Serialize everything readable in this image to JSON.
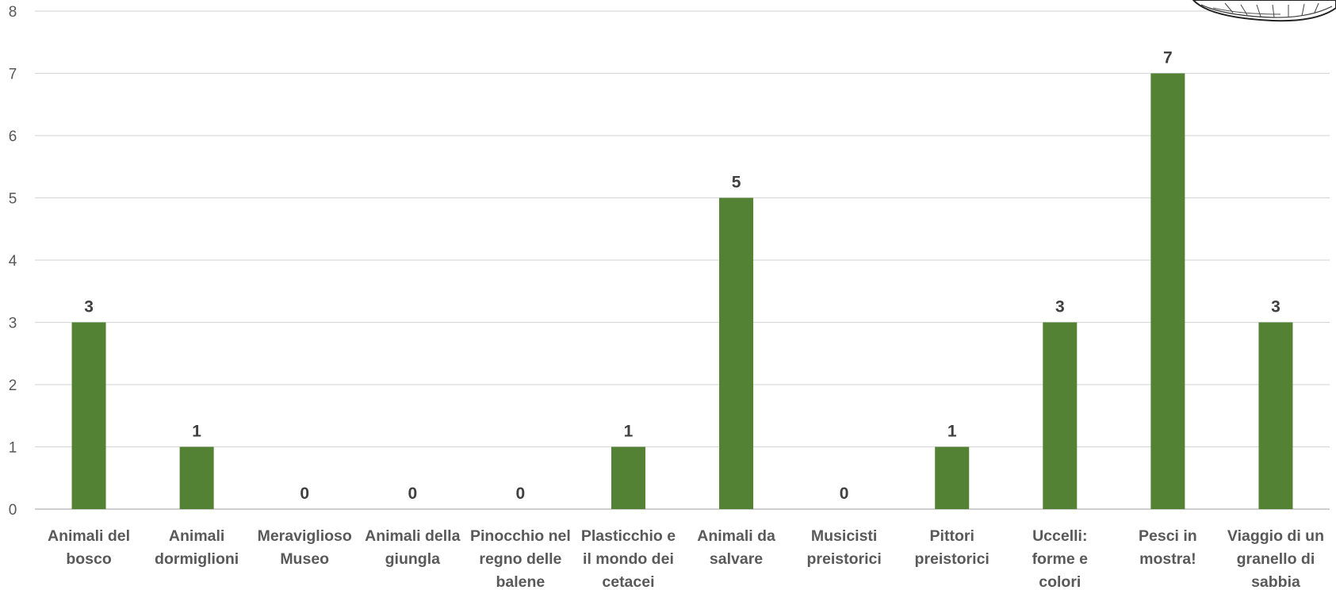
{
  "chart_data": {
    "type": "bar",
    "categories": [
      [
        "Animali del",
        "bosco"
      ],
      [
        "Animali",
        "dormiglioni"
      ],
      [
        "Meraviglioso",
        "Museo"
      ],
      [
        "Animali della",
        "giungla"
      ],
      [
        "Pinocchio nel",
        "regno delle",
        "balene"
      ],
      [
        "Plasticchio e",
        "il mondo dei",
        "cetacei"
      ],
      [
        "Animali da",
        "salvare"
      ],
      [
        "Musicisti",
        "preistorici"
      ],
      [
        "Pittori",
        "preistorici"
      ],
      [
        "Uccelli:",
        "forme e",
        "colori"
      ],
      [
        "Pesci in",
        "mostra!"
      ],
      [
        "Viaggio di un",
        "granello di",
        "sabbia"
      ]
    ],
    "values": [
      3,
      1,
      0,
      0,
      0,
      1,
      5,
      0,
      1,
      3,
      7,
      3
    ],
    "ylim": [
      0,
      8
    ],
    "yticks": [
      0,
      1,
      2,
      3,
      4,
      5,
      6,
      7,
      8
    ],
    "grid": true,
    "data_labels": true,
    "bar_color": "#548235",
    "title": "",
    "xlabel": "",
    "ylabel": ""
  },
  "decoration": {
    "corner_illustration": "seashell-illustration"
  }
}
